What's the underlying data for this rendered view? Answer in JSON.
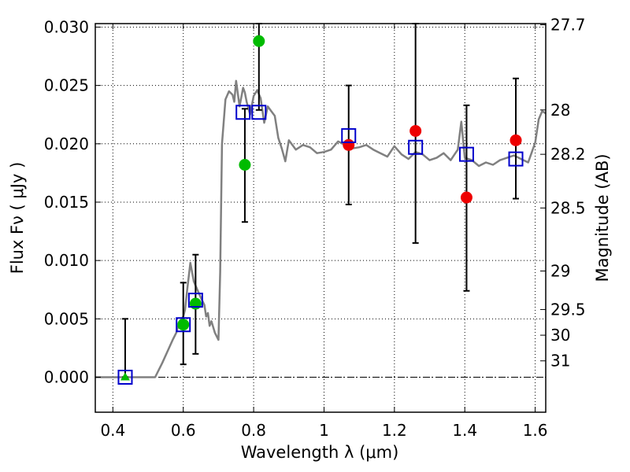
{
  "chart_data": {
    "type": "scatter",
    "xlabel": "Wavelength  λ (μm)",
    "ylabel": "Flux  Fν  ( μJy )",
    "y2label": "Magnitude (AB)",
    "xlim": [
      0.35,
      1.63
    ],
    "ylim": [
      -0.003,
      0.0303
    ],
    "grid": true,
    "x_ticks": [
      0.4,
      0.6,
      0.8,
      1.0,
      1.2,
      1.4,
      1.6
    ],
    "x_tick_labels": [
      "0.4",
      "0.6",
      "0.8",
      "1",
      "1.2",
      "1.4",
      "1.6"
    ],
    "y_ticks": [
      0.0,
      0.005,
      0.01,
      0.015,
      0.02,
      0.025,
      0.03
    ],
    "y_tick_labels": [
      "0.000",
      "0.005",
      "0.010",
      "0.015",
      "0.020",
      "0.025",
      "0.030"
    ],
    "mag_ticks": [
      {
        "label": "27.7",
        "flux": 0.0302
      },
      {
        "label": "28",
        "flux": 0.0229
      },
      {
        "label": "28.2",
        "flux": 0.0191
      },
      {
        "label": "28.5",
        "flux": 0.0145
      },
      {
        "label": "29",
        "flux": 0.0091
      },
      {
        "label": "29.5",
        "flux": 0.0058
      },
      {
        "label": "30",
        "flux": 0.0036
      },
      {
        "label": "31",
        "flux": 0.0014
      }
    ],
    "model_spectrum": {
      "color": "#808080",
      "x": [
        0.35,
        0.52,
        0.54,
        0.555,
        0.57,
        0.58,
        0.59,
        0.595,
        0.6,
        0.605,
        0.61,
        0.62,
        0.63,
        0.64,
        0.65,
        0.66,
        0.665,
        0.67,
        0.675,
        0.68,
        0.69,
        0.7,
        0.705,
        0.71,
        0.72,
        0.73,
        0.74,
        0.745,
        0.75,
        0.76,
        0.77,
        0.775,
        0.78,
        0.79,
        0.8,
        0.81,
        0.82,
        0.83,
        0.84,
        0.85,
        0.86,
        0.87,
        0.88,
        0.89,
        0.9,
        0.92,
        0.94,
        0.96,
        0.98,
        1.0,
        1.02,
        1.04,
        1.06,
        1.08,
        1.1,
        1.12,
        1.14,
        1.16,
        1.18,
        1.2,
        1.22,
        1.24,
        1.26,
        1.28,
        1.3,
        1.32,
        1.34,
        1.36,
        1.38,
        1.39,
        1.4,
        1.42,
        1.44,
        1.46,
        1.48,
        1.5,
        1.52,
        1.54,
        1.56,
        1.58,
        1.6,
        1.61,
        1.62,
        1.63
      ],
      "y": [
        0.0,
        0.0,
        0.0012,
        0.0022,
        0.0032,
        0.0038,
        0.0048,
        0.005,
        0.0052,
        0.0058,
        0.0072,
        0.0098,
        0.0082,
        0.0075,
        0.0068,
        0.0062,
        0.0052,
        0.0055,
        0.0044,
        0.0048,
        0.0038,
        0.0032,
        0.009,
        0.02,
        0.0238,
        0.0245,
        0.0242,
        0.0236,
        0.0254,
        0.0232,
        0.0248,
        0.0244,
        0.0236,
        0.0225,
        0.0241,
        0.0246,
        0.0239,
        0.0218,
        0.0232,
        0.0228,
        0.0224,
        0.0205,
        0.0196,
        0.0185,
        0.0203,
        0.0195,
        0.0199,
        0.0197,
        0.0192,
        0.0193,
        0.0195,
        0.0202,
        0.0199,
        0.0196,
        0.0197,
        0.0199,
        0.0195,
        0.0192,
        0.0189,
        0.0198,
        0.0191,
        0.0187,
        0.0193,
        0.0191,
        0.0186,
        0.0188,
        0.0192,
        0.0186,
        0.0195,
        0.0219,
        0.0188,
        0.0186,
        0.0181,
        0.0184,
        0.0182,
        0.0186,
        0.0188,
        0.019,
        0.0187,
        0.0184,
        0.0201,
        0.0221,
        0.0228,
        0.0226
      ]
    },
    "error_bars": {
      "color": "#000000",
      "points": [
        {
          "x": 0.435,
          "low": 0.0,
          "high": 0.005
        },
        {
          "x": 0.6,
          "low": 0.0011,
          "high": 0.0081
        },
        {
          "x": 0.635,
          "low": 0.002,
          "high": 0.0105
        },
        {
          "x": 0.775,
          "low": 0.0133,
          "high": 0.023
        },
        {
          "x": 0.815,
          "low": 0.0229,
          "high": 0.0303
        },
        {
          "x": 1.07,
          "low": 0.0148,
          "high": 0.025
        },
        {
          "x": 1.26,
          "low": 0.0115,
          "high": 0.0303
        },
        {
          "x": 1.405,
          "low": 0.0074,
          "high": 0.0233
        },
        {
          "x": 1.545,
          "low": 0.0153,
          "high": 0.0256
        }
      ]
    },
    "model_photometry": {
      "marker": "open-square",
      "color": "#0000cc",
      "points": [
        {
          "x": 0.435,
          "y": 0.0
        },
        {
          "x": 0.6,
          "y": 0.0045
        },
        {
          "x": 0.635,
          "y": 0.0066
        },
        {
          "x": 0.77,
          "y": 0.0227
        },
        {
          "x": 0.815,
          "y": 0.0227
        },
        {
          "x": 1.07,
          "y": 0.0207
        },
        {
          "x": 1.26,
          "y": 0.0197
        },
        {
          "x": 1.405,
          "y": 0.0191
        },
        {
          "x": 1.545,
          "y": 0.0187
        }
      ]
    },
    "optical_detections": {
      "marker": "circle",
      "color": "#00bb00",
      "points": [
        {
          "x": 0.6,
          "y": 0.0045
        },
        {
          "x": 0.635,
          "y": 0.0063
        },
        {
          "x": 0.775,
          "y": 0.0182
        },
        {
          "x": 0.815,
          "y": 0.0288
        }
      ]
    },
    "optical_upper_limit": {
      "marker": "triangle",
      "color": "#00bb00",
      "points": [
        {
          "x": 0.435,
          "y": 0.0
        }
      ]
    },
    "nir_detections": {
      "marker": "circle",
      "color": "#ee0000",
      "points": [
        {
          "x": 1.07,
          "y": 0.0199
        },
        {
          "x": 1.26,
          "y": 0.0211
        },
        {
          "x": 1.405,
          "y": 0.0154
        },
        {
          "x": 1.545,
          "y": 0.0203
        }
      ]
    }
  }
}
